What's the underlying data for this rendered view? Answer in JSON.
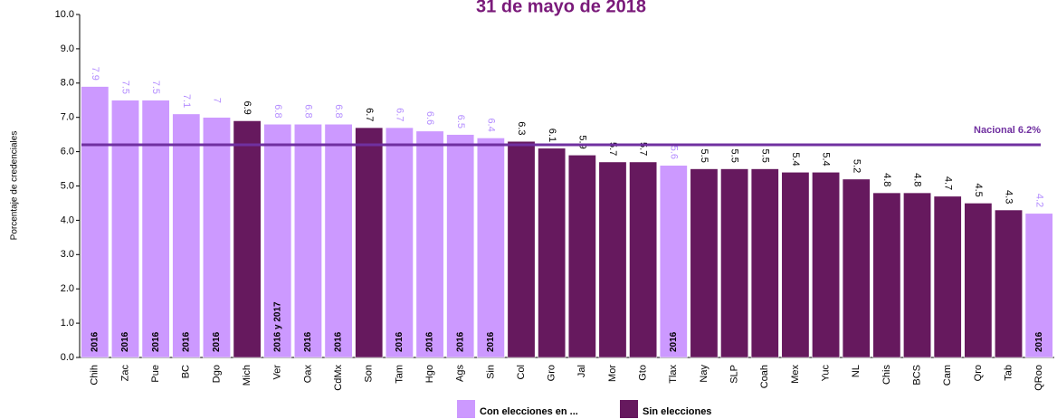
{
  "chart_data": {
    "type": "bar",
    "title": "31 de mayo de 2018",
    "y_label": "Porcentaje  de credenciales",
    "categories": [
      "Chih",
      "Zac",
      "Pue",
      "BC",
      "Dgo",
      "Mich",
      "Ver",
      "Oax",
      "CdMx",
      "Son",
      "Tam",
      "Hgo",
      "Ags",
      "Sin",
      "Col",
      "Gro",
      "Jal",
      "Mor",
      "Gto",
      "Tlax",
      "Nay",
      "SLP",
      "Coah",
      "Mex",
      "Yuc",
      "NL",
      "Chis",
      "BCS",
      "Cam",
      "Qro",
      "Tab",
      "QRoo"
    ],
    "series": [
      {
        "name": "Con elecciones en ...",
        "color": "#cc99ff",
        "label_color": "#b38cff",
        "values": [
          7.9,
          7.5,
          7.5,
          7.1,
          7.0,
          null,
          6.8,
          6.8,
          6.8,
          null,
          6.7,
          6.6,
          6.5,
          6.4,
          null,
          null,
          null,
          null,
          null,
          5.6,
          null,
          null,
          null,
          null,
          null,
          null,
          null,
          null,
          null,
          null,
          null,
          4.2
        ]
      },
      {
        "name": "Sin elecciones",
        "color": "#66195e",
        "label_color": "#000000",
        "values": [
          null,
          null,
          null,
          null,
          null,
          6.9,
          null,
          null,
          null,
          6.7,
          null,
          null,
          null,
          null,
          6.3,
          6.1,
          5.9,
          5.7,
          5.7,
          null,
          5.5,
          5.5,
          5.5,
          5.4,
          5.4,
          5.2,
          4.8,
          4.8,
          4.7,
          4.5,
          4.3,
          null
        ]
      }
    ],
    "bar_labels": [
      "2016",
      "2016",
      "2016",
      "2016",
      "2016",
      null,
      "2016 y 2017",
      "2016",
      "2016",
      null,
      "2016",
      "2016",
      "2016",
      "2016",
      null,
      null,
      null,
      null,
      null,
      "2016",
      null,
      null,
      null,
      null,
      null,
      null,
      null,
      null,
      null,
      null,
      null,
      "2016"
    ],
    "reference_line": {
      "value": 6.2,
      "label": "Nacional 6.2%",
      "color": "#7030a0"
    },
    "ylim": [
      0,
      10
    ],
    "yticks": [
      {
        "value": 0,
        "label": "0.0"
      },
      {
        "value": 1,
        "label": "1.0"
      },
      {
        "value": 2,
        "label": "2.0"
      },
      {
        "value": 3,
        "label": "3.0"
      },
      {
        "value": 4,
        "label": "4.0"
      },
      {
        "value": 5,
        "label": "5.0"
      },
      {
        "value": 6,
        "label": "6.0"
      },
      {
        "value": 7,
        "label": "7.0"
      },
      {
        "value": 8,
        "label": "8.0"
      },
      {
        "value": 9,
        "label": "9.0"
      },
      {
        "value": 10,
        "label": "10.0"
      }
    ]
  }
}
